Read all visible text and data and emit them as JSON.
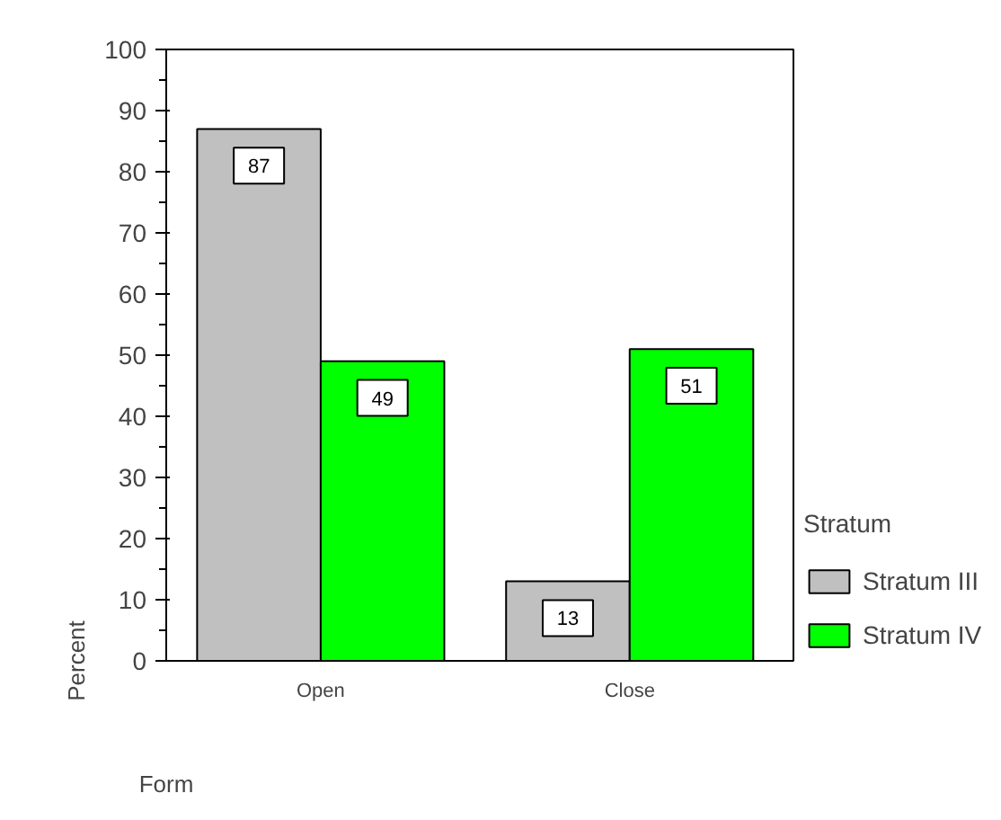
{
  "chart_data": {
    "type": "bar",
    "categories": [
      "Open",
      "Close"
    ],
    "series": [
      {
        "name": "Stratum III",
        "color": "#c0c0c0",
        "values": [
          87,
          13
        ]
      },
      {
        "name": "Stratum IV",
        "color": "#00ff00",
        "values": [
          49,
          51
        ]
      }
    ],
    "xlabel": "Form",
    "ylabel": "Percent",
    "legend_title": "Stratum",
    "legend": "right",
    "ylim": [
      0,
      100
    ],
    "yticks": [
      0,
      10,
      20,
      30,
      40,
      50,
      60,
      70,
      80,
      90,
      100
    ],
    "data_labels": true,
    "grid": false
  }
}
